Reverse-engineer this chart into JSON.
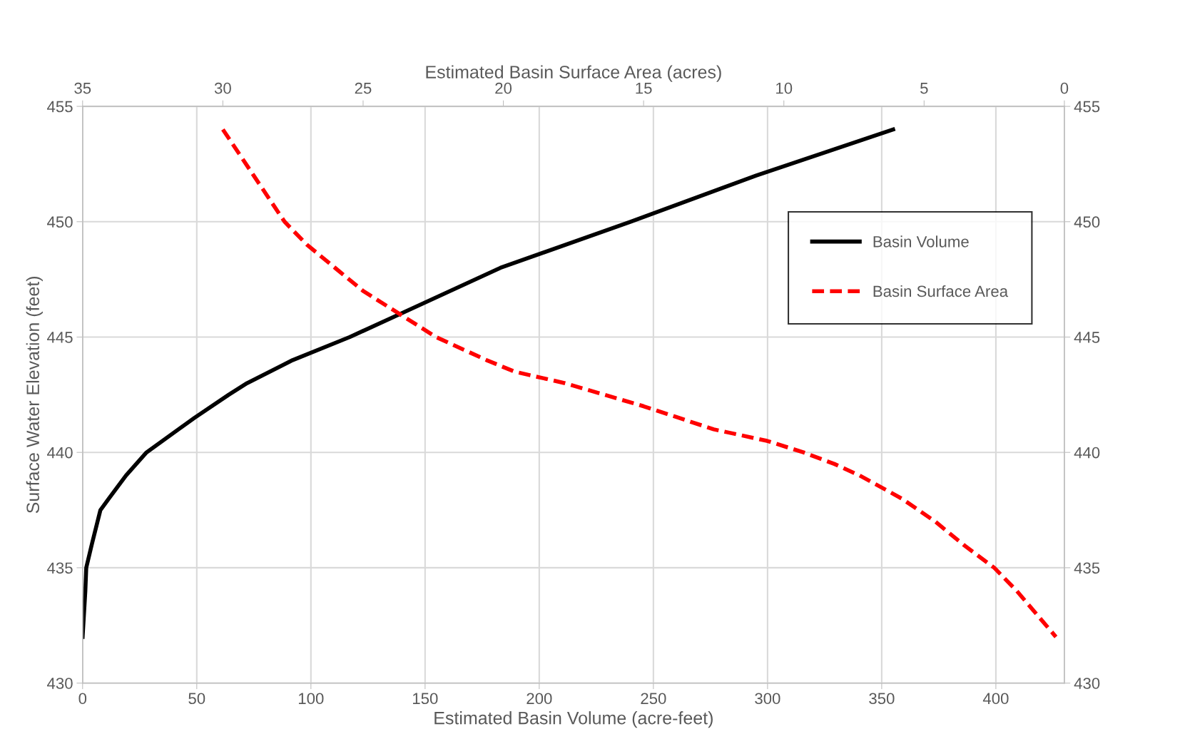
{
  "chart_data": {
    "type": "line",
    "xlabel": "Estimated Basin Volume (acre-feet)",
    "x2label": "Estimated Basin Surface Area (acres)",
    "ylabel": "Surface Water Elevation (feet)",
    "xlim": [
      0,
      430
    ],
    "xticks": [
      0,
      50,
      100,
      150,
      200,
      250,
      300,
      350,
      400
    ],
    "x2lim": [
      35,
      0
    ],
    "x2ticks": [
      35,
      30,
      25,
      20,
      15,
      10,
      5,
      0
    ],
    "ylim": [
      430,
      455
    ],
    "yticks": [
      430,
      435,
      440,
      445,
      450,
      455
    ],
    "y2lim": [
      430,
      455
    ],
    "y2ticks": [
      430,
      435,
      440,
      445,
      450,
      455
    ],
    "grid": true,
    "legend": "right",
    "marker": "none",
    "series": [
      {
        "name": "Basin Volume",
        "color": "#000000",
        "line_style": "solid",
        "x": [
          0,
          0.6,
          1.2,
          1.6,
          4,
          7.8,
          11.5,
          19,
          28,
          49,
          64,
          72,
          92,
          117,
          139,
          183,
          240,
          295,
          355
        ],
        "values": [
          432,
          433,
          434,
          435,
          436,
          437.5,
          438,
          439,
          440,
          441.5,
          442.5,
          443,
          444,
          445,
          446,
          448,
          450,
          452,
          454
        ]
      },
      {
        "name": "Basin Surface Area",
        "color": "#ff0000",
        "line_style": "dashed",
        "axis": "x2",
        "x": [
          30.0,
          28.9,
          27.8,
          27.0,
          26.0,
          25.0,
          23.7,
          22.4,
          20.6,
          19.6,
          17.8,
          15.0,
          12.5,
          10.6,
          9.3,
          8.2,
          7.3,
          5.8,
          4.6,
          3.6,
          2.5,
          1.7,
          1.0,
          0.3
        ],
        "values": [
          454,
          452,
          450,
          449,
          448,
          447,
          446,
          445,
          444,
          443.5,
          443,
          442,
          441,
          440.5,
          440,
          439.5,
          439,
          438,
          437,
          436,
          435,
          434,
          433,
          432
        ]
      }
    ]
  }
}
